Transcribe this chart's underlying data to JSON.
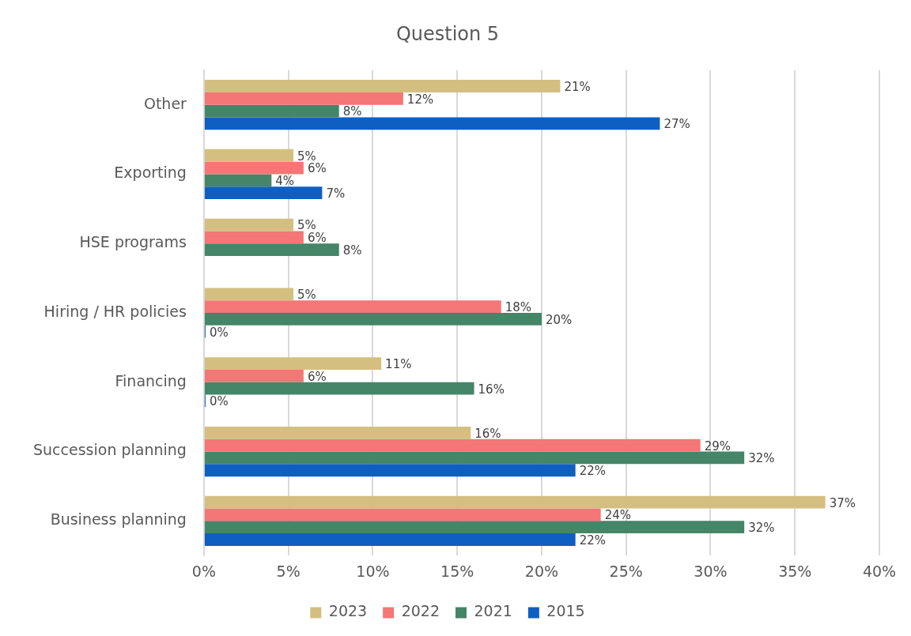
{
  "chart_data": {
    "type": "bar",
    "orientation": "horizontal",
    "title": "Question 5",
    "categories": [
      "Other",
      "Exporting",
      "HSE programs",
      "Hiring / HR policies",
      "Financing",
      "Succession planning",
      "Business planning"
    ],
    "series": [
      {
        "name": "2023",
        "color": "#d5bf80",
        "values": [
          21.1,
          5.3,
          5.3,
          5.3,
          10.5,
          15.8,
          36.8
        ],
        "value_labels": [
          "21%",
          "5%",
          "5%",
          "5%",
          "11%",
          "16%",
          "37%"
        ]
      },
      {
        "name": "2022",
        "color": "#f47676",
        "values": [
          11.8,
          5.9,
          5.9,
          17.6,
          5.9,
          29.4,
          23.5
        ],
        "value_labels": [
          "12%",
          "6%",
          "6%",
          "18%",
          "6%",
          "29%",
          "24%"
        ]
      },
      {
        "name": "2021",
        "color": "#458568",
        "values": [
          8,
          4,
          8,
          20,
          16,
          32,
          32
        ],
        "value_labels": [
          "8%",
          "4%",
          "8%",
          "20%",
          "16%",
          "32%",
          "32%"
        ]
      },
      {
        "name": "2015",
        "color": "#0f5fc2",
        "values": [
          27,
          7,
          null,
          0,
          0,
          22,
          22
        ],
        "value_labels": [
          "27%",
          "7%",
          null,
          "0%",
          "0%",
          "22%",
          "22%"
        ]
      }
    ],
    "xlim": [
      0,
      40
    ],
    "xticks": [
      {
        "value": 0,
        "label": "0%"
      },
      {
        "value": 5,
        "label": "5%"
      },
      {
        "value": 10,
        "label": "10%"
      },
      {
        "value": 15,
        "label": "15%"
      },
      {
        "value": 20,
        "label": "20%"
      },
      {
        "value": 25,
        "label": "25%"
      },
      {
        "value": 30,
        "label": "30%"
      },
      {
        "value": 35,
        "label": "35%"
      },
      {
        "value": 40,
        "label": "40%"
      }
    ],
    "grid": "x",
    "legend": "bottom"
  }
}
